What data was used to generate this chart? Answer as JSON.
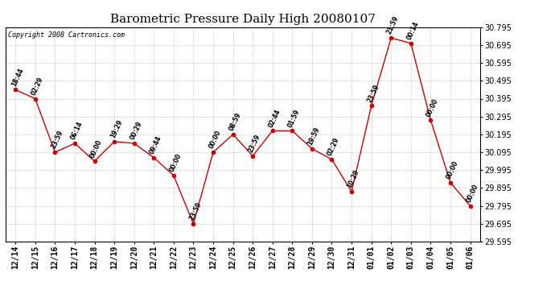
{
  "title": "Barometric Pressure Daily High 20080107",
  "copyright": "Copyright 2008 Cartronics.com",
  "x_labels": [
    "12/14",
    "12/15",
    "12/16",
    "12/17",
    "12/18",
    "12/19",
    "12/20",
    "12/21",
    "12/22",
    "12/23",
    "12/24",
    "12/25",
    "12/26",
    "12/27",
    "12/28",
    "12/29",
    "12/30",
    "12/31",
    "01/01",
    "01/02",
    "01/03",
    "01/04",
    "01/05",
    "01/06"
  ],
  "y_values": [
    30.445,
    30.395,
    30.095,
    30.145,
    30.045,
    30.155,
    30.145,
    30.065,
    29.965,
    29.695,
    30.095,
    30.195,
    30.075,
    30.215,
    30.215,
    30.115,
    30.055,
    29.875,
    30.355,
    30.735,
    30.705,
    30.275,
    29.925,
    29.795
  ],
  "time_labels": [
    "18:44",
    "02:29",
    "23:59",
    "06:14",
    "00:00",
    "19:29",
    "00:29",
    "09:44",
    "00:00",
    "23:59",
    "00:00",
    "08:59",
    "23:59",
    "02:44",
    "01:59",
    "19:59",
    "02:29",
    "10:29",
    "23:59",
    "21:59",
    "00:14",
    "00:00",
    "00:00",
    "00:00"
  ],
  "line_color": "#cc0000",
  "marker_color": "#cc0000",
  "grid_color": "#cccccc",
  "background_color": "#ffffff",
  "ylim_min": 29.595,
  "ylim_max": 30.795,
  "ytick_step": 0.1,
  "title_fontsize": 11,
  "copyright_fontsize": 6,
  "tick_fontsize": 7,
  "annot_fontsize": 5.5
}
